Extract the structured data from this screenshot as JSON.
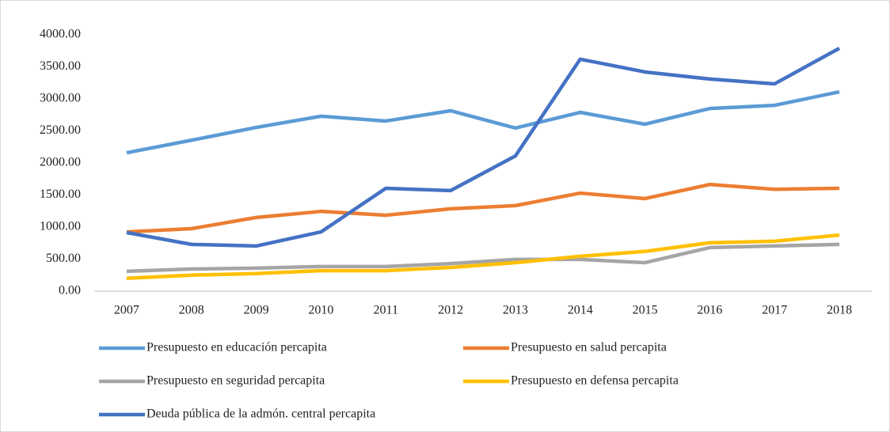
{
  "chart_data": {
    "type": "line",
    "categories": [
      "2007",
      "2008",
      "2009",
      "2010",
      "2011",
      "2012",
      "2013",
      "2014",
      "2015",
      "2016",
      "2017",
      "2018"
    ],
    "series": [
      {
        "name": "Presupuesto en educación percapita",
        "color": "#5b9bd5",
        "values": [
          2160,
          2355,
          2555,
          2730,
          2655,
          2815,
          2545,
          2790,
          2605,
          2850,
          2900,
          3110
        ]
      },
      {
        "name": "Presupuesto en salud percapita",
        "color": "#ed7d31",
        "values": [
          925,
          975,
          1150,
          1245,
          1185,
          1285,
          1335,
          1530,
          1445,
          1665,
          1590,
          1605
        ]
      },
      {
        "name": "Presupuesto en seguridad percapita",
        "color": "#a5a5a5",
        "values": [
          310,
          345,
          360,
          385,
          385,
          430,
          495,
          495,
          445,
          680,
          705,
          730
        ]
      },
      {
        "name": "Presupuesto en defensa percapita",
        "color": "#ffc000",
        "values": [
          200,
          250,
          275,
          320,
          320,
          370,
          445,
          545,
          620,
          755,
          780,
          875
        ]
      },
      {
        "name": "Deuda pública de la admón. central percapita",
        "color": "#4472c4",
        "values": [
          915,
          730,
          705,
          925,
          1605,
          1570,
          2110,
          3620,
          3420,
          3310,
          3235,
          3790
        ]
      }
    ],
    "ylim": [
      0,
      4000
    ],
    "yticks": [
      {
        "value": 0,
        "label": "0.00"
      },
      {
        "value": 500,
        "label": "500.00"
      },
      {
        "value": 1000,
        "label": "1000.00"
      },
      {
        "value": 1500,
        "label": "1500.00"
      },
      {
        "value": 2000,
        "label": "2000.00"
      },
      {
        "value": 2500,
        "label": "2500.00"
      },
      {
        "value": 3000,
        "label": "3000.00"
      },
      {
        "value": 3500,
        "label": "3500.00"
      },
      {
        "value": 4000,
        "label": "4000.00"
      }
    ],
    "grid": false,
    "legend": "bottom"
  }
}
